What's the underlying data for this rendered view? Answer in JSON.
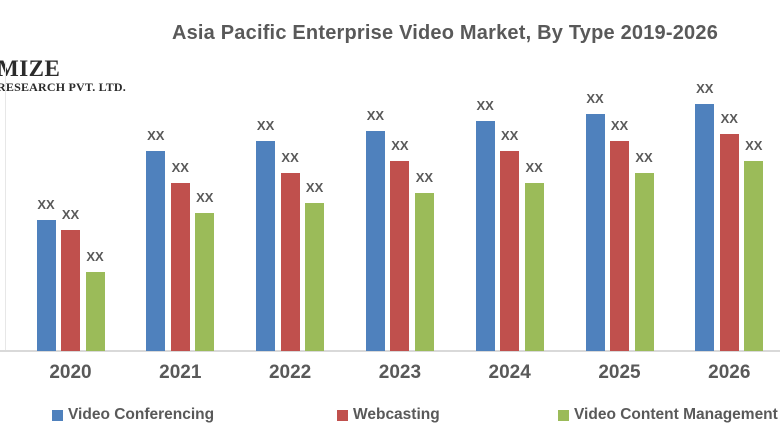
{
  "logo": {
    "line1": "MIZE",
    "line2": "RESEARCH PVT. LTD."
  },
  "chart_data": {
    "type": "bar",
    "title": "Asia Pacific Enterprise Video Market, By Type 2019-2026",
    "categories": [
      "2020",
      "2021",
      "2022",
      "2023",
      "2024",
      "2025",
      "2026"
    ],
    "series": [
      {
        "name": "Video Conferencing",
        "color": "#4F81BD",
        "values": [
          53,
          81,
          85,
          89,
          93,
          96,
          100
        ]
      },
      {
        "name": "Webcasting",
        "color": "#C0504D",
        "values": [
          49,
          68,
          72,
          77,
          81,
          85,
          88
        ]
      },
      {
        "name": "Video Content Management",
        "color": "#9BBB59",
        "values": [
          32,
          56,
          60,
          64,
          68,
          72,
          77
        ]
      }
    ],
    "data_label": "XX",
    "values_note": "Every bar is labeled 'XX' (values undisclosed in image); series values are relative bar heights with 2026 Video Conferencing = 100",
    "ylim": [
      0,
      108
    ],
    "grid": false,
    "legend_position": "bottom",
    "title_color": "#595959",
    "label_color": "#595959",
    "axis_color": "#d9d9d9"
  }
}
